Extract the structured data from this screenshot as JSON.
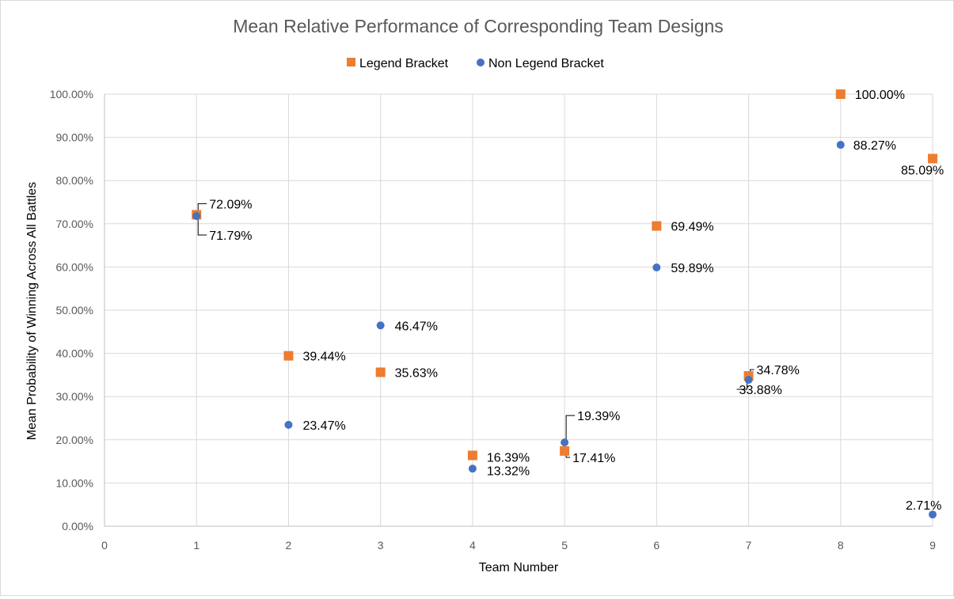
{
  "chart_data": {
    "type": "scatter",
    "title": "Mean Relative Performance of Corresponding Team Designs",
    "xlabel": "Team Number",
    "ylabel": "Mean Probability of Winning Across All Battles",
    "xlim": [
      0,
      9
    ],
    "ylim": [
      0,
      1
    ],
    "x_ticks": [
      "0",
      "1",
      "2",
      "3",
      "4",
      "5",
      "6",
      "7",
      "8",
      "9"
    ],
    "y_ticks": [
      "0.00%",
      "10.00%",
      "20.00%",
      "30.00%",
      "40.00%",
      "50.00%",
      "60.00%",
      "70.00%",
      "80.00%",
      "90.00%",
      "100.00%"
    ],
    "grid": true,
    "legend_position": "top",
    "series": [
      {
        "name": "Legend Bracket",
        "marker": "square",
        "color": "#ED7D31",
        "x": [
          1,
          2,
          3,
          4,
          5,
          6,
          7,
          8,
          9
        ],
        "y": [
          0.7209,
          0.3944,
          0.3563,
          0.1639,
          0.1741,
          0.6949,
          0.3478,
          1.0,
          0.8509
        ],
        "labels": [
          "72.09%",
          "39.44%",
          "35.63%",
          "16.39%",
          "17.41%",
          "69.49%",
          "34.78%",
          "100.00%",
          "85.09%"
        ]
      },
      {
        "name": "Non Legend Bracket",
        "marker": "circle",
        "color": "#4472C4",
        "x": [
          1,
          2,
          3,
          4,
          5,
          6,
          7,
          8,
          9
        ],
        "y": [
          0.7179,
          0.2347,
          0.4647,
          0.1332,
          0.1939,
          0.5989,
          0.3388,
          0.8827,
          0.0271
        ],
        "labels": [
          "71.79%",
          "23.47%",
          "46.47%",
          "13.32%",
          "19.39%",
          "59.89%",
          "33.88%",
          "88.27%",
          "2.71%"
        ]
      }
    ]
  }
}
